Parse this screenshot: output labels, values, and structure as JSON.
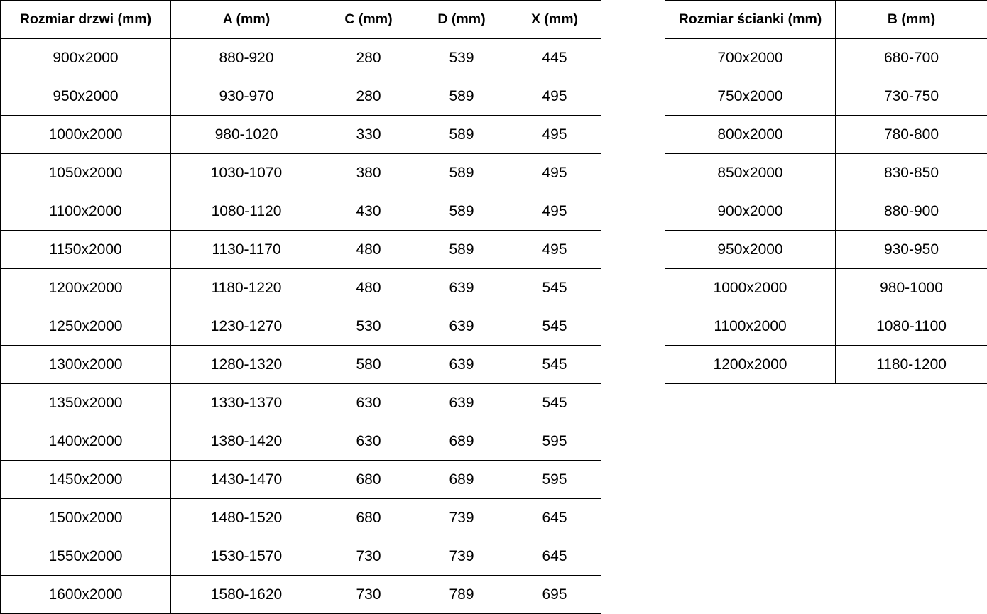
{
  "doors_table": {
    "headers": [
      "Rozmiar drzwi (mm)",
      "A (mm)",
      "C (mm)",
      "D (mm)",
      "X (mm)"
    ],
    "rows": [
      [
        "900x2000",
        "880-920",
        "280",
        "539",
        "445"
      ],
      [
        "950x2000",
        "930-970",
        "280",
        "589",
        "495"
      ],
      [
        "1000x2000",
        "980-1020",
        "330",
        "589",
        "495"
      ],
      [
        "1050x2000",
        "1030-1070",
        "380",
        "589",
        "495"
      ],
      [
        "1100x2000",
        "1080-1120",
        "430",
        "589",
        "495"
      ],
      [
        "1150x2000",
        "1130-1170",
        "480",
        "589",
        "495"
      ],
      [
        "1200x2000",
        "1180-1220",
        "480",
        "639",
        "545"
      ],
      [
        "1250x2000",
        "1230-1270",
        "530",
        "639",
        "545"
      ],
      [
        "1300x2000",
        "1280-1320",
        "580",
        "639",
        "545"
      ],
      [
        "1350x2000",
        "1330-1370",
        "630",
        "639",
        "545"
      ],
      [
        "1400x2000",
        "1380-1420",
        "630",
        "689",
        "595"
      ],
      [
        "1450x2000",
        "1430-1470",
        "680",
        "689",
        "595"
      ],
      [
        "1500x2000",
        "1480-1520",
        "680",
        "739",
        "645"
      ],
      [
        "1550x2000",
        "1530-1570",
        "730",
        "739",
        "645"
      ],
      [
        "1600x2000",
        "1580-1620",
        "730",
        "789",
        "695"
      ]
    ]
  },
  "wall_table": {
    "headers": [
      "Rozmiar ścianki (mm)",
      "B (mm)"
    ],
    "rows": [
      [
        "700x2000",
        "680-700"
      ],
      [
        "750x2000",
        "730-750"
      ],
      [
        "800x2000",
        "780-800"
      ],
      [
        "850x2000",
        "830-850"
      ],
      [
        "900x2000",
        "880-900"
      ],
      [
        "950x2000",
        "930-950"
      ],
      [
        "1000x2000",
        "980-1000"
      ],
      [
        "1100x2000",
        "1080-1100"
      ],
      [
        "1200x2000",
        "1180-1200"
      ]
    ]
  }
}
